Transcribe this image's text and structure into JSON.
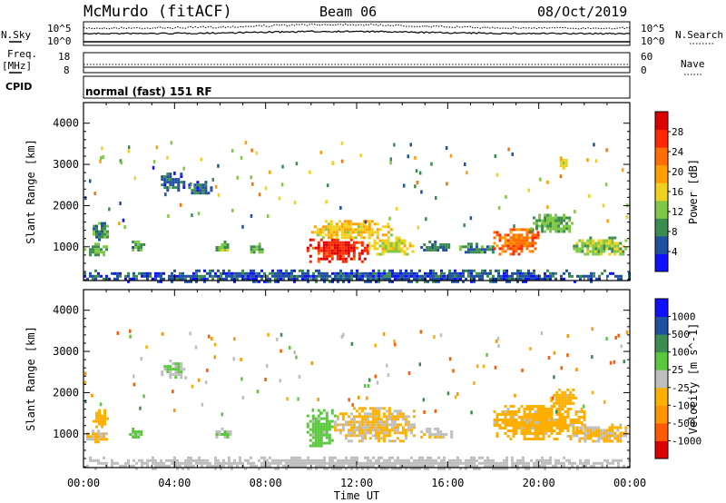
{
  "header": {
    "station": "McMurdo (fitACF)",
    "beam": "Beam 06",
    "date": "08/Oct/2019"
  },
  "status_panels": {
    "nsky_label": "N.Sky",
    "nsearch_label": "N.Search",
    "noise_ticks_left": [
      "10^5",
      "10^0"
    ],
    "noise_ticks_right": [
      "10^5",
      "10^0"
    ],
    "freq_label": "Freq.",
    "freq_unit": "[MHz]",
    "freq_ticks": [
      "18",
      "8"
    ],
    "nave_label": "Nave",
    "nave_ticks": [
      "60",
      "0"
    ],
    "cpid_label": "CPID",
    "cpid_value": "normal (fast) 151 RF"
  },
  "colors": {
    "power_scale": [
      "#1010ff",
      "#2050a0",
      "#3c8c50",
      "#7fc846",
      "#f0d21e",
      "#ffa000",
      "#ff6e00",
      "#ff2800",
      "#dc0000"
    ],
    "velocity_scale": [
      "#dc0000",
      "#ff5a00",
      "#ff9600",
      "#ffaf00",
      "#bebebe",
      "#5ac83c",
      "#3c8c50",
      "#2050a0",
      "#1010ff"
    ]
  },
  "chart_data": [
    {
      "type": "heatmap",
      "name": "power",
      "xlabel": "Time UT",
      "ylabel": "Slant Range [km]",
      "x_ticks": [
        "00:00",
        "04:00",
        "08:00",
        "12:00",
        "16:00",
        "20:00",
        "00:00"
      ],
      "x_range_hours": [
        0,
        24
      ],
      "y_range": [
        180,
        4500
      ],
      "y_ticks": [
        1000,
        2000,
        3000,
        4000
      ],
      "colorbar_label": "Power [dB]",
      "colorbar_ticks": [
        "4",
        "8",
        "12",
        "16",
        "20",
        "24",
        "28"
      ],
      "colorbar_range": [
        0,
        30
      ],
      "regions": [
        {
          "t": [
            0.0,
            1.0
          ],
          "r": [
            800,
            1100
          ],
          "v": 10
        },
        {
          "t": [
            0.4,
            1.1
          ],
          "r": [
            1200,
            1600
          ],
          "v": 8
        },
        {
          "t": [
            2.0,
            2.6
          ],
          "r": [
            900,
            1150
          ],
          "v": 9
        },
        {
          "t": [
            3.4,
            4.4
          ],
          "r": [
            2400,
            2800
          ],
          "v": 6
        },
        {
          "t": [
            4.6,
            5.6
          ],
          "r": [
            2300,
            2600
          ],
          "v": 6
        },
        {
          "t": [
            5.8,
            6.5
          ],
          "r": [
            900,
            1150
          ],
          "v": 11
        },
        {
          "t": [
            7.2,
            7.8
          ],
          "r": [
            850,
            1100
          ],
          "v": 9
        },
        {
          "t": [
            9.8,
            12.5
          ],
          "r": [
            650,
            1200
          ],
          "v": 26
        },
        {
          "t": [
            10.0,
            13.5
          ],
          "r": [
            1200,
            1650
          ],
          "v": 16
        },
        {
          "t": [
            12.5,
            14.5
          ],
          "r": [
            850,
            1250
          ],
          "v": 14
        },
        {
          "t": [
            14.8,
            16.2
          ],
          "r": [
            900,
            1150
          ],
          "v": 7
        },
        {
          "t": [
            16.5,
            18.0
          ],
          "r": [
            850,
            1100
          ],
          "v": 8
        },
        {
          "t": [
            18.0,
            20.0
          ],
          "r": [
            850,
            1450
          ],
          "v": 22
        },
        {
          "t": [
            19.5,
            21.5
          ],
          "r": [
            1350,
            1800
          ],
          "v": 10
        },
        {
          "t": [
            21.5,
            23.8
          ],
          "r": [
            800,
            1250
          ],
          "v": 12
        },
        {
          "t": [
            20.8,
            21.2
          ],
          "r": [
            2900,
            3200
          ],
          "v": 14
        },
        {
          "t": [
            0.0,
            24.0
          ],
          "r": [
            180,
            450
          ],
          "v": 5
        }
      ]
    },
    {
      "type": "heatmap",
      "name": "velocity",
      "xlabel": "Time UT",
      "ylabel": "Slant Range [km]",
      "x_ticks": [
        "00:00",
        "04:00",
        "08:00",
        "12:00",
        "16:00",
        "20:00",
        "00:00"
      ],
      "x_range_hours": [
        0,
        24
      ],
      "y_range": [
        180,
        4500
      ],
      "y_ticks": [
        1000,
        2000,
        3000,
        4000
      ],
      "colorbar_label": "Velocity [m s^-1]",
      "colorbar_ticks": [
        "-1000",
        "-500",
        "-100",
        "-25",
        "25",
        "100",
        "500",
        "1000"
      ],
      "colorbar_range": [
        -1200,
        1200
      ],
      "regions": [
        {
          "t": [
            0.0,
            1.0
          ],
          "r": [
            800,
            1100
          ],
          "v": -150
        },
        {
          "t": [
            0.4,
            1.1
          ],
          "r": [
            1200,
            1600
          ],
          "v": -200
        },
        {
          "t": [
            2.0,
            2.6
          ],
          "r": [
            900,
            1150
          ],
          "v": 200
        },
        {
          "t": [
            3.4,
            4.4
          ],
          "r": [
            2400,
            2800
          ],
          "v": 120
        },
        {
          "t": [
            5.8,
            6.5
          ],
          "r": [
            900,
            1150
          ],
          "v": 150
        },
        {
          "t": [
            9.8,
            11.0
          ],
          "r": [
            700,
            1600
          ],
          "v": 200
        },
        {
          "t": [
            11.0,
            14.5
          ],
          "r": [
            800,
            1650
          ],
          "v": -150
        },
        {
          "t": [
            14.8,
            16.2
          ],
          "r": [
            900,
            1150
          ],
          "v": -80
        },
        {
          "t": [
            18.0,
            22.0
          ],
          "r": [
            900,
            1700
          ],
          "v": -200
        },
        {
          "t": [
            20.5,
            21.6
          ],
          "r": [
            1700,
            2100
          ],
          "v": -300
        },
        {
          "t": [
            21.5,
            23.8
          ],
          "r": [
            800,
            1250
          ],
          "v": -150
        },
        {
          "t": [
            0.0,
            24.0
          ],
          "r": [
            180,
            450
          ],
          "v": -30
        }
      ]
    }
  ]
}
